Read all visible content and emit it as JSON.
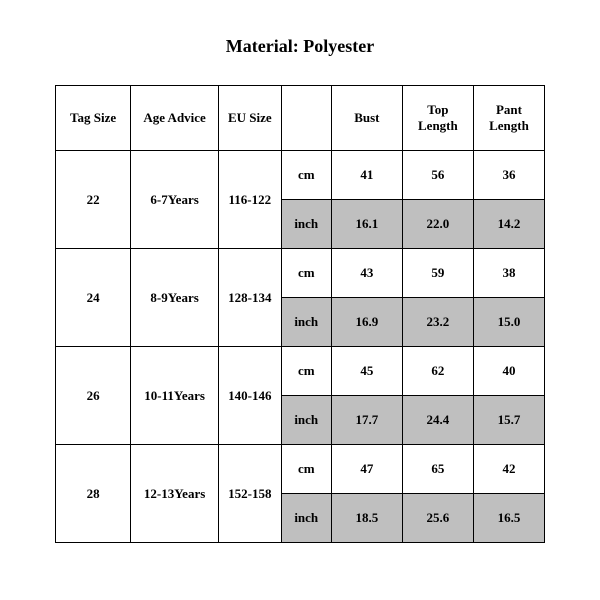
{
  "title": "Material: Polyester",
  "table": {
    "columns": {
      "tag_size": "Tag Size",
      "age_advice": "Age Advice",
      "eu_size": "EU Size",
      "unit": "",
      "bust": "Bust",
      "top_length_l1": "Top",
      "top_length_l2": "Length",
      "pant_length_l1": "Pant",
      "pant_length_l2": "Length"
    },
    "unit_cm": "cm",
    "unit_inch": "inch",
    "rows": [
      {
        "tag_size": "22",
        "age_advice": "6-7Years",
        "eu_size": "116-122",
        "cm": {
          "bust": "41",
          "top_length": "56",
          "pant_length": "36"
        },
        "inch": {
          "bust": "16.1",
          "top_length": "22.0",
          "pant_length": "14.2"
        }
      },
      {
        "tag_size": "24",
        "age_advice": "8-9Years",
        "eu_size": "128-134",
        "cm": {
          "bust": "43",
          "top_length": "59",
          "pant_length": "38"
        },
        "inch": {
          "bust": "16.9",
          "top_length": "23.2",
          "pant_length": "15.0"
        }
      },
      {
        "tag_size": "26",
        "age_advice": "10-11Years",
        "eu_size": "140-146",
        "cm": {
          "bust": "45",
          "top_length": "62",
          "pant_length": "40"
        },
        "inch": {
          "bust": "17.7",
          "top_length": "24.4",
          "pant_length": "15.7"
        }
      },
      {
        "tag_size": "28",
        "age_advice": "12-13Years",
        "eu_size": "152-158",
        "cm": {
          "bust": "47",
          "top_length": "65",
          "pant_length": "42"
        },
        "inch": {
          "bust": "18.5",
          "top_length": "25.6",
          "pant_length": "16.5"
        }
      }
    ],
    "colors": {
      "background": "#ffffff",
      "text": "#000000",
      "border": "#000000",
      "shaded_row": "#bfbfbf"
    },
    "typography": {
      "font_family": "Times New Roman",
      "title_fontsize_pt": 14,
      "cell_fontsize_pt": 10,
      "font_weight": "bold"
    }
  }
}
